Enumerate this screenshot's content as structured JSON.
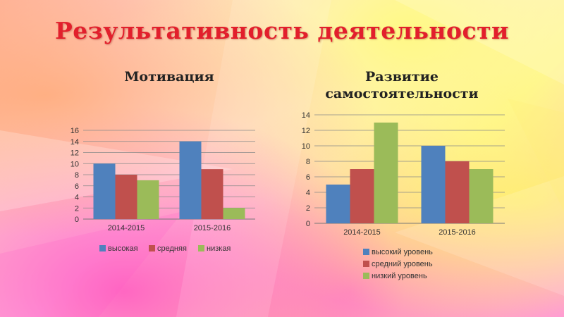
{
  "slide": {
    "title": "Результативность деятельности"
  },
  "colors": {
    "blue": "#4f81bd",
    "red": "#c0504d",
    "green": "#9bbb59"
  },
  "chart_data": [
    {
      "type": "bar",
      "title": "Мотивация",
      "categories": [
        "2014-2015",
        "2015-2016"
      ],
      "series": [
        {
          "name": "высокая",
          "values": [
            10,
            14
          ]
        },
        {
          "name": "средняя",
          "values": [
            8,
            9
          ]
        },
        {
          "name": "низкая",
          "values": [
            7,
            2
          ]
        }
      ],
      "ylim": [
        0,
        16
      ],
      "yticks": [
        0,
        2,
        4,
        6,
        8,
        10,
        12,
        14,
        16
      ],
      "grid": true,
      "legend": "bottom"
    },
    {
      "type": "bar",
      "title": "Развитие самостоятельности",
      "categories": [
        "2014-2015",
        "2015-2016"
      ],
      "series": [
        {
          "name": "высокий уровень",
          "values": [
            5,
            10
          ]
        },
        {
          "name": "средний уровень",
          "values": [
            7,
            8
          ]
        },
        {
          "name": "низкий уровень",
          "values": [
            13,
            7
          ]
        }
      ],
      "ylim": [
        0,
        14
      ],
      "yticks": [
        0,
        2,
        4,
        6,
        8,
        10,
        12,
        14
      ],
      "grid": true,
      "legend": "bottom"
    }
  ]
}
